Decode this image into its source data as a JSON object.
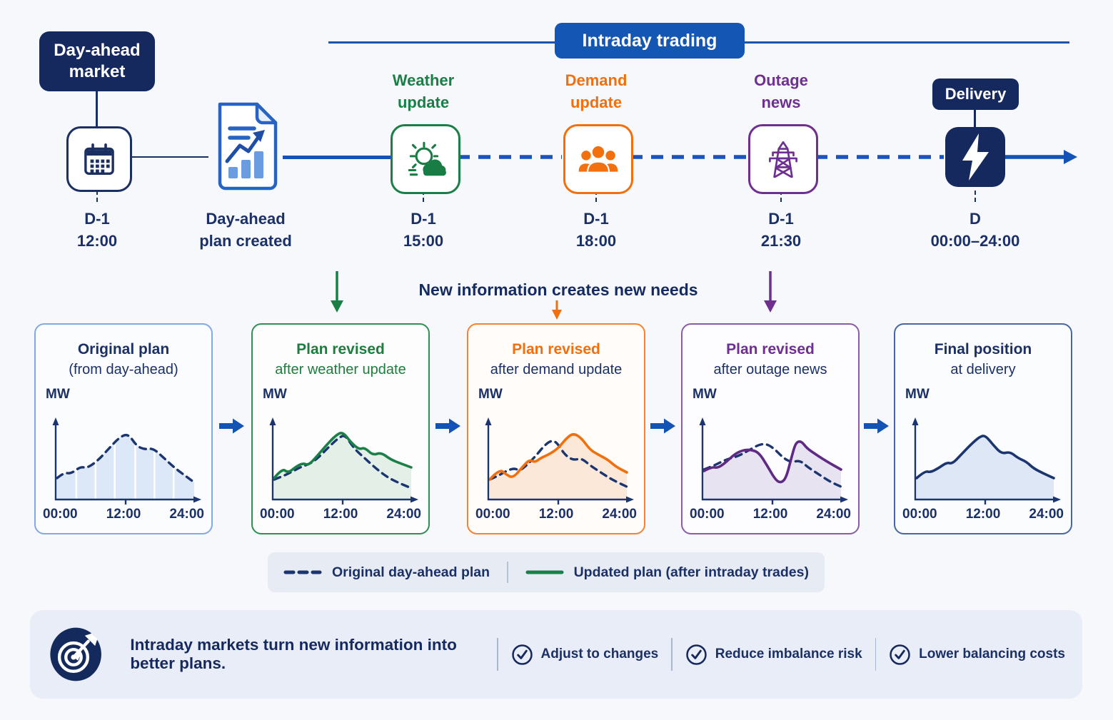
{
  "timeline": {
    "day_ahead_badge": "Day-ahead market",
    "intraday_badge": "Intraday trading",
    "delivery_badge": "Delivery",
    "labels": {
      "weather": {
        "line1": "Weather",
        "line2": "update"
      },
      "demand": {
        "line1": "Demand",
        "line2": "update"
      },
      "outage": {
        "line1": "Outage",
        "line2": "news"
      }
    },
    "times": {
      "calendar": {
        "line1": "D-1",
        "line2": "12:00"
      },
      "document": {
        "line1": "Day-ahead",
        "line2": "plan created"
      },
      "weather": {
        "line1": "D-1",
        "line2": "15:00"
      },
      "demand": {
        "line1": "D-1",
        "line2": "18:00"
      },
      "outage": {
        "line1": "D-1",
        "line2": "21:30"
      },
      "delivery": {
        "line1": "D",
        "line2": "00:00–24:00"
      }
    },
    "icons": [
      "calendar-icon",
      "document-chart-icon",
      "sun-cloud-icon",
      "people-icon",
      "transmission-tower-icon",
      "lightning-icon"
    ]
  },
  "middle": {
    "heading": "New information creates new needs"
  },
  "cards": [
    {
      "title1": "Original plan",
      "title2": "(from day-ahead)",
      "title1_color": "#1b3066",
      "title2_color": "#1b3066",
      "border": "#82a9e0",
      "bg": "#fbfcfe",
      "axis_label": "MW",
      "ticks": [
        "00:00",
        "12:00",
        "24:00"
      ],
      "area_fill": "#dce7f7",
      "area_on": "dashed",
      "gridlines": true,
      "dashed": [
        [
          0,
          0.3
        ],
        [
          0.05,
          0.38
        ],
        [
          0.1,
          0.36
        ],
        [
          0.17,
          0.46
        ],
        [
          0.22,
          0.44
        ],
        [
          0.3,
          0.55
        ],
        [
          0.38,
          0.72
        ],
        [
          0.46,
          0.88
        ],
        [
          0.52,
          0.92
        ],
        [
          0.58,
          0.75
        ],
        [
          0.64,
          0.7
        ],
        [
          0.7,
          0.72
        ],
        [
          0.78,
          0.58
        ],
        [
          0.86,
          0.44
        ],
        [
          0.93,
          0.34
        ],
        [
          1,
          0.24
        ]
      ],
      "solid": null,
      "solid_color": null
    },
    {
      "title1": "Plan revised",
      "title2": "after weather update",
      "title1_color": "#1e7d3e",
      "title2_color": "#1e7d3e",
      "border": "#2f8f55",
      "bg": "#fcfdfc",
      "axis_label": "MW",
      "ticks": [
        "00:00",
        "12:00",
        "24:00"
      ],
      "area_fill": "#e4efe7",
      "area_on": "solid",
      "gridlines": false,
      "dashed": [
        [
          0,
          0.28
        ],
        [
          0.08,
          0.34
        ],
        [
          0.14,
          0.4
        ],
        [
          0.2,
          0.46
        ],
        [
          0.26,
          0.5
        ],
        [
          0.32,
          0.58
        ],
        [
          0.4,
          0.74
        ],
        [
          0.48,
          0.88
        ],
        [
          0.52,
          0.9
        ],
        [
          0.58,
          0.72
        ],
        [
          0.66,
          0.58
        ],
        [
          0.74,
          0.44
        ],
        [
          0.82,
          0.32
        ],
        [
          0.9,
          0.24
        ],
        [
          1,
          0.16
        ]
      ],
      "solid": [
        [
          0,
          0.3
        ],
        [
          0.06,
          0.44
        ],
        [
          0.1,
          0.37
        ],
        [
          0.16,
          0.46
        ],
        [
          0.21,
          0.51
        ],
        [
          0.25,
          0.48
        ],
        [
          0.31,
          0.6
        ],
        [
          0.38,
          0.76
        ],
        [
          0.45,
          0.9
        ],
        [
          0.5,
          0.95
        ],
        [
          0.56,
          0.8
        ],
        [
          0.62,
          0.7
        ],
        [
          0.66,
          0.73
        ],
        [
          0.72,
          0.62
        ],
        [
          0.78,
          0.66
        ],
        [
          0.85,
          0.56
        ],
        [
          0.93,
          0.5
        ],
        [
          1,
          0.45
        ]
      ],
      "solid_color": "#1a8048"
    },
    {
      "title1": "Plan revised",
      "title2": "after demand update",
      "title1_color": "#f26f0d",
      "title2_color": "#1b3066",
      "border": "#f58231",
      "bg": "#fffcf9",
      "axis_label": "MW",
      "ticks": [
        "00:00",
        "12:00",
        "24:00"
      ],
      "area_fill": "#fbe8d8",
      "area_on": "solid",
      "gridlines": false,
      "dashed": [
        [
          0,
          0.28
        ],
        [
          0.06,
          0.33
        ],
        [
          0.12,
          0.4
        ],
        [
          0.18,
          0.44
        ],
        [
          0.22,
          0.4
        ],
        [
          0.28,
          0.5
        ],
        [
          0.34,
          0.62
        ],
        [
          0.4,
          0.76
        ],
        [
          0.45,
          0.83
        ],
        [
          0.49,
          0.8
        ],
        [
          0.55,
          0.62
        ],
        [
          0.61,
          0.55
        ],
        [
          0.67,
          0.58
        ],
        [
          0.73,
          0.48
        ],
        [
          0.81,
          0.38
        ],
        [
          0.89,
          0.28
        ],
        [
          1,
          0.18
        ]
      ],
      "solid": [
        [
          0,
          0.28
        ],
        [
          0.07,
          0.43
        ],
        [
          0.12,
          0.35
        ],
        [
          0.17,
          0.3
        ],
        [
          0.24,
          0.46
        ],
        [
          0.29,
          0.56
        ],
        [
          0.33,
          0.52
        ],
        [
          0.37,
          0.58
        ],
        [
          0.44,
          0.64
        ],
        [
          0.5,
          0.72
        ],
        [
          0.56,
          0.86
        ],
        [
          0.61,
          0.93
        ],
        [
          0.67,
          0.86
        ],
        [
          0.73,
          0.7
        ],
        [
          0.79,
          0.63
        ],
        [
          0.86,
          0.56
        ],
        [
          0.92,
          0.46
        ],
        [
          1,
          0.38
        ]
      ],
      "solid_color": "#f26f0d"
    },
    {
      "title1": "Plan revised",
      "title2": "after outage news",
      "title1_color": "#6e2f90",
      "title2_color": "#1b3066",
      "border": "#8a5ca8",
      "bg": "#fdfcfe",
      "axis_label": "MW",
      "ticks": [
        "00:00",
        "12:00",
        "24:00"
      ],
      "area_fill": "#e8e3f1",
      "area_on": "solid",
      "gridlines": false,
      "dashed": [
        [
          0,
          0.42
        ],
        [
          0.08,
          0.48
        ],
        [
          0.16,
          0.56
        ],
        [
          0.24,
          0.6
        ],
        [
          0.32,
          0.68
        ],
        [
          0.4,
          0.77
        ],
        [
          0.46,
          0.78
        ],
        [
          0.52,
          0.7
        ],
        [
          0.58,
          0.58
        ],
        [
          0.64,
          0.52
        ],
        [
          0.7,
          0.55
        ],
        [
          0.76,
          0.45
        ],
        [
          0.84,
          0.35
        ],
        [
          0.92,
          0.25
        ],
        [
          1,
          0.18
        ]
      ],
      "solid": [
        [
          0,
          0.4
        ],
        [
          0.06,
          0.46
        ],
        [
          0.1,
          0.44
        ],
        [
          0.16,
          0.52
        ],
        [
          0.22,
          0.63
        ],
        [
          0.28,
          0.69
        ],
        [
          0.34,
          0.7
        ],
        [
          0.4,
          0.66
        ],
        [
          0.46,
          0.48
        ],
        [
          0.52,
          0.28
        ],
        [
          0.56,
          0.23
        ],
        [
          0.6,
          0.3
        ],
        [
          0.64,
          0.6
        ],
        [
          0.67,
          0.8
        ],
        [
          0.71,
          0.82
        ],
        [
          0.75,
          0.72
        ],
        [
          0.81,
          0.64
        ],
        [
          0.89,
          0.54
        ],
        [
          1,
          0.42
        ]
      ],
      "solid_color": "#5f2a85"
    },
    {
      "title1": "Final position",
      "title2": "at delivery",
      "title1_color": "#1b3066",
      "title2_color": "#1b3066",
      "border": "#46679f",
      "bg": "#fbfcfe",
      "axis_label": "MW",
      "ticks": [
        "00:00",
        "12:00",
        "24:00"
      ],
      "area_fill": "#dde7f6",
      "area_on": "solid",
      "gridlines": false,
      "dashed": null,
      "solid": [
        [
          0,
          0.3
        ],
        [
          0.06,
          0.4
        ],
        [
          0.1,
          0.38
        ],
        [
          0.16,
          0.44
        ],
        [
          0.22,
          0.52
        ],
        [
          0.26,
          0.5
        ],
        [
          0.32,
          0.62
        ],
        [
          0.4,
          0.78
        ],
        [
          0.46,
          0.88
        ],
        [
          0.5,
          0.9
        ],
        [
          0.56,
          0.76
        ],
        [
          0.62,
          0.64
        ],
        [
          0.68,
          0.67
        ],
        [
          0.74,
          0.58
        ],
        [
          0.8,
          0.53
        ],
        [
          0.85,
          0.44
        ],
        [
          0.92,
          0.37
        ],
        [
          1,
          0.3
        ]
      ],
      "solid_color": "#1b3570"
    }
  ],
  "legend": {
    "dashed_label": "Original day-ahead plan",
    "solid_label": "Updated plan (after intraday trades)"
  },
  "banner": {
    "headline": "Intraday markets turn new information into better plans.",
    "items": [
      "Adjust to changes",
      "Reduce imbalance risk",
      "Lower balancing costs"
    ]
  },
  "colors": {
    "navy": "#16295f",
    "text_navy": "#1b3066",
    "blue": "#1353b5",
    "green": "#1a8048",
    "orange": "#f26f0d",
    "purple": "#6e2f90",
    "dashed_navy": "#1b3570"
  }
}
